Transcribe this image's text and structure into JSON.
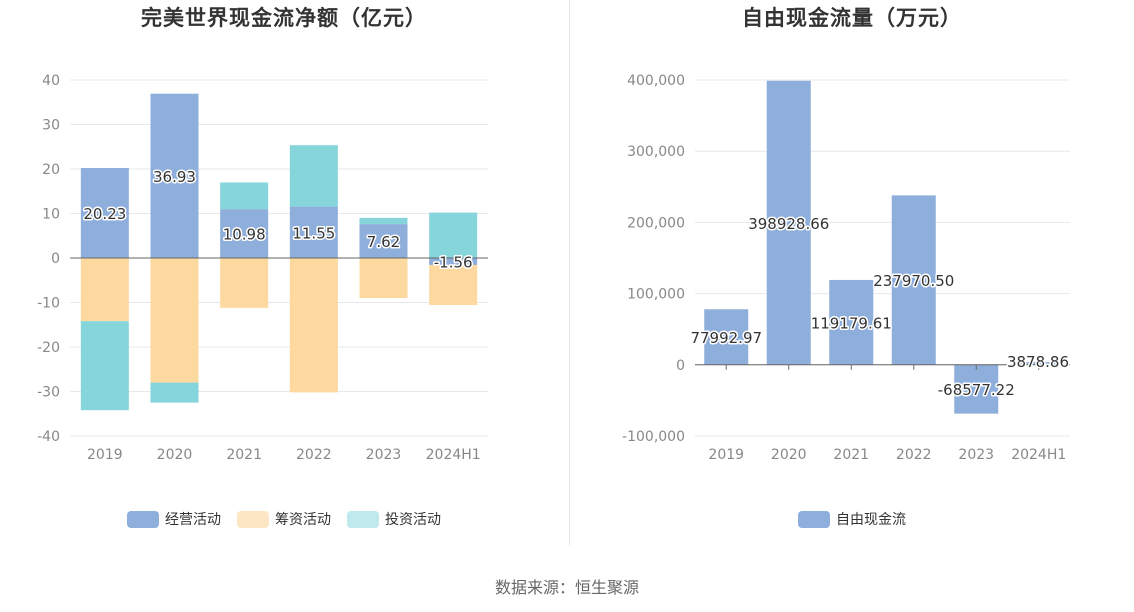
{
  "source": "数据来源：恒生聚源",
  "colors": {
    "operating": "#8eaedb",
    "financing": "#fdd99f",
    "investing": "#86d5da",
    "free_cf": "#8eaedb",
    "grid": "#e6e8ee",
    "axis": "#666666"
  },
  "chart_data": [
    {
      "type": "bar",
      "stacked": true,
      "title": "完美世界现金流净额（亿元）",
      "categories": [
        "2019",
        "2020",
        "2021",
        "2022",
        "2023",
        "2024H1"
      ],
      "ylim": [
        -40,
        40
      ],
      "yticks": [
        "40",
        "30",
        "20",
        "10",
        "0",
        "-10",
        "-20",
        "-30",
        "-40"
      ],
      "series": [
        {
          "name": "经营活动",
          "values": [
            20.23,
            36.93,
            10.98,
            11.55,
            7.62,
            -1.56
          ],
          "labels": [
            "20.23",
            "36.93",
            "10.98",
            "11.55",
            "7.62",
            "-1.56"
          ]
        },
        {
          "name": "筹资活动",
          "values": [
            -14.2,
            -28.0,
            -11.2,
            -30.2,
            -9.0,
            -9.0
          ]
        },
        {
          "name": "投资活动",
          "values": [
            -20.0,
            -4.5,
            6.0,
            13.8,
            1.4,
            10.2
          ]
        }
      ],
      "legend_position": "bottom"
    },
    {
      "type": "bar",
      "title": "自由现金流量（万元）",
      "categories": [
        "2019",
        "2020",
        "2021",
        "2022",
        "2023",
        "2024H1"
      ],
      "ylim": [
        -100000,
        400000
      ],
      "yticks": [
        "400,000",
        "300,000",
        "200,000",
        "100,000",
        "0",
        "-100,000"
      ],
      "series": [
        {
          "name": "自由现金流",
          "values": [
            77992.97,
            398928.66,
            119179.61,
            237970.5,
            -68577.22,
            3878.86
          ],
          "labels": [
            "77992.97",
            "398928.66",
            "119179.61",
            "237970.50",
            "-68577.22",
            "3878.86"
          ]
        }
      ],
      "legend_position": "bottom"
    }
  ]
}
